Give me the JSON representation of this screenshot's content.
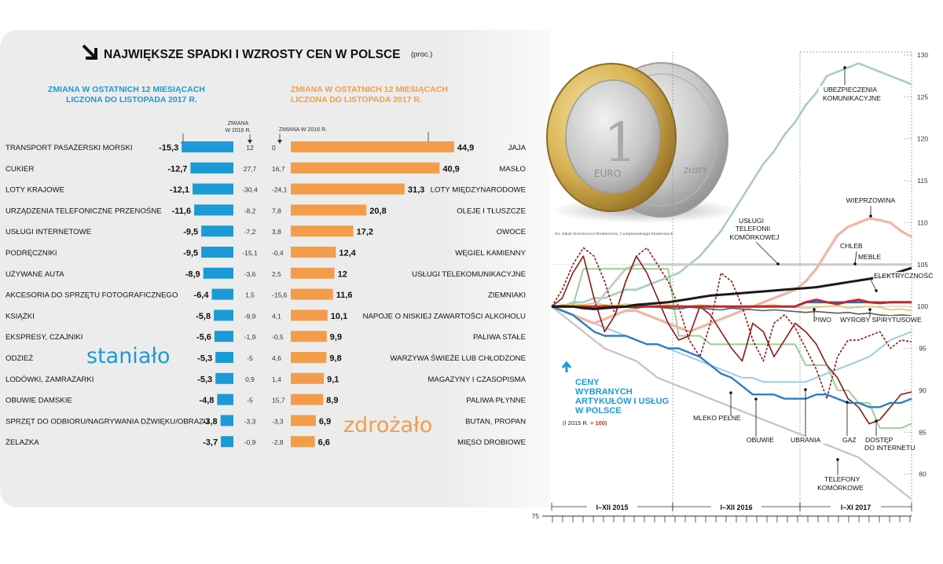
{
  "header": {
    "title": "NAJWIĘKSZE SPADKI I WZROSTY CEN W POLSCE",
    "unit": "(proc.)"
  },
  "decreases": {
    "subtitle_line1": "ZMIANA W OSTATNICH 12 MIESIĄCACH",
    "subtitle_line2": "LICZONA DO LISTOPADA 2017 R.",
    "col_header_line1": "ZMIANA",
    "col_header_line2": "W 2016 R.",
    "label_big": "staniało",
    "color": "#1c9ad6"
  },
  "increases": {
    "subtitle_line1": "ZMIANA W OSTATNICH 12 MIESIĄCACH",
    "subtitle_line2": "LICZONA DO LISTOPADA 2017 R.",
    "col_header": "ZMIANA W 2016 R.",
    "label_big": "zdrożało",
    "color": "#f39d4b"
  },
  "photo_credit": "fot. Jakub Krechowicz/Shutterstock, Coolphotodesign/Shutterstock",
  "coin": {
    "front_digit": "1",
    "front_text": "EURO",
    "back_text": "ZŁOTY"
  },
  "line_chart": {
    "title_line1": "CENY",
    "title_line2": "WYBRANYCH",
    "title_line3": "ARTYKUŁÓW I USŁUG",
    "title_line4": "W POLSCE",
    "note_prefix": "(I 2015 R. = ",
    "note_value": "100",
    "note_suffix": ")",
    "periods": [
      "I–XII 2015",
      "I–XII 2016",
      "I–XI 2017"
    ],
    "y_ticks": [
      "130",
      "125",
      "120",
      "115",
      "110",
      "105",
      "100",
      "95",
      "90",
      "85",
      "80",
      "75"
    ],
    "labels": {
      "ubezp1": "UBEZPIECZENIA",
      "ubezp2": "KOMUNIKACYJNE",
      "wieprz": "WIEPRZOWINA",
      "uslugi1": "USŁUGI",
      "uslugi2": "TELEFONII",
      "uslugi3": "KOMÓRKOWEJ",
      "chleb": "CHLEB",
      "meble": "MEBLE",
      "elektr": "ELEKTRYCZNOŚĆ",
      "piwo": "PIWO",
      "wyroby": "WYROBY SPIRYTUSOWE",
      "mleko": "MLEKO PEŁNE",
      "obuwie": "OBUWIE",
      "ubrania": "UBRANIA",
      "gaz": "GAZ",
      "dostep1": "DOSTĘP",
      "dostep2": "DO INTERNETU",
      "tel1": "TELEFONY",
      "tel2": "KOMÓRKOWE"
    }
  },
  "chart_data": [
    {
      "type": "bar",
      "title": "NAJWIĘKSZE SPADKI I WZROSTY CEN W POLSCE",
      "subtitle": "ZMIANA W OSTATNICH 12 MIESIĄCACH LICZONA DO LISTOPADA 2017 R.",
      "direction": "decrease",
      "categories": [
        "TRANSPORT PASAŻERSKI MORSKI",
        "CUKIER",
        "LOTY KRAJOWE",
        "URZĄDZENIA TELEFONICZNE PRZENOŚNE",
        "USŁUGI INTERNETOWE",
        "PODRĘCZNIKI",
        "UŻYWANE AUTA",
        "AKCESORIA DO SPRZĘTU FOTOGRAFICZNEGO",
        "KSIĄŻKI",
        "EKSPRESY, CZAJNIKI",
        "ODZIEŻ",
        "LODÓWKI, ZAMRAŻARKI",
        "OBUWIE DAMSKIE",
        "SPRZĘT DO ODBIORU/NAGRYWANIA DŹWIĘKU/OBRAZU",
        "ŻELAZKA"
      ],
      "values": [
        "-15,3",
        "-12,7",
        "-12,1",
        "-11,6",
        "-9,5",
        "-9,5",
        "-8,9",
        "-6,4",
        "-5,8",
        "-5,6",
        "-5,3",
        "-5,3",
        "-4,8",
        "-3,8",
        "-3,7"
      ],
      "values_num": [
        -15.3,
        -12.7,
        -12.1,
        -11.6,
        -9.5,
        -9.5,
        -8.9,
        -6.4,
        -5.8,
        -5.6,
        -5.3,
        -5.3,
        -4.8,
        -3.8,
        -3.7
      ],
      "change_2016": [
        "12",
        "27,7",
        "-30,4",
        "-8,2",
        "-7,2",
        "-15,1",
        "-3,6",
        "1,5",
        "-9,9",
        "-1,9",
        "-5",
        "0,9",
        "-5",
        "-3,3",
        "-0,9"
      ]
    },
    {
      "type": "bar",
      "direction": "increase",
      "subtitle": "ZMIANA W OSTATNICH 12 MIESIĄCACH LICZONA DO LISTOPADA 2017 R.",
      "categories": [
        "JAJA",
        "MASŁO",
        "LOTY MIĘDZYNARODOWE",
        "OLEJE I TŁUSZCZE",
        "OWOCE",
        "WĘGIEL KAMIENNY",
        "USŁUGI TELEKOMUNIKACYJNE",
        "ZIEMNIAKI",
        "NAPOJE O NISKIEJ ZAWARTOŚCI ALKOHOLU",
        "PALIWA STAŁE",
        "WARZYWA ŚWIEŻE LUB CHŁODZONE",
        "MAGAZYNY I CZASOPISMA",
        "PALIWA PŁYNNE",
        "BUTAN, PROPAN",
        "MIĘSO DROBIOWE"
      ],
      "values": [
        "44,9",
        "40,9",
        "31,3",
        "20,8",
        "17,2",
        "12,4",
        "12",
        "11,6",
        "10,1",
        "9,9",
        "9,8",
        "9,1",
        "8,9",
        "6,9",
        "6,6"
      ],
      "values_num": [
        44.9,
        40.9,
        31.3,
        20.8,
        17.2,
        12.4,
        12,
        11.6,
        10.1,
        9.9,
        9.8,
        9.1,
        8.9,
        6.9,
        6.6
      ],
      "change_2016": [
        "0",
        "16,7",
        "-24,1",
        "7,8",
        "3,8",
        "-0,4",
        "2,5",
        "-15,6",
        "4,1",
        "-0,5",
        "4,6",
        "1,4",
        "15,7",
        "-3,3",
        "-2,8"
      ]
    },
    {
      "type": "line",
      "title": "CENY WYBRANYCH ARTYKUŁÓW I USŁUG W POLSCE",
      "note": "(I 2015 R. = 100)",
      "ylim": [
        75,
        130
      ],
      "y_ticks": [
        75,
        80,
        85,
        90,
        95,
        100,
        105,
        110,
        115,
        120,
        125,
        130
      ],
      "periods": [
        "I–XII 2015",
        "I–XII 2016",
        "I–XI 2017"
      ],
      "months": 35,
      "series": [
        {
          "name": "UBEZPIECZENIA KOMUNIKACYJNE",
          "color": "#a9cbc9",
          "values": [
            100,
            100,
            100.5,
            100.5,
            101,
            101,
            101.5,
            102,
            102,
            102.5,
            103,
            103.5,
            104,
            105,
            106,
            107.5,
            109,
            111,
            113,
            115,
            117,
            118.5,
            120.5,
            122,
            124,
            125.5,
            127.5,
            128,
            128.5,
            129,
            128.5,
            128,
            127.5,
            127,
            126.5
          ]
        },
        {
          "name": "WIEPRZOWINA",
          "color": "#f0b5a3",
          "values": [
            100,
            99.5,
            99,
            98.5,
            98,
            98.5,
            99,
            99.5,
            99.5,
            99,
            98.5,
            98,
            97.5,
            97,
            97.5,
            98,
            98.5,
            99,
            99.5,
            100,
            100.5,
            101,
            101.5,
            102,
            103,
            104.5,
            106.5,
            108.5,
            109.5,
            110,
            110.5,
            110.3,
            110,
            109,
            108.3
          ]
        },
        {
          "name": "USŁUGI TELEFONII KOMÓRKOWEJ",
          "color": "#cccccc",
          "values": [
            100,
            100,
            100,
            100,
            100,
            101.5,
            103,
            104.5,
            105,
            105,
            105,
            105,
            105,
            105,
            105,
            105,
            105,
            105,
            105,
            105,
            105,
            105,
            105,
            105,
            105,
            105,
            105,
            105,
            105,
            105,
            105,
            105,
            105,
            105,
            105
          ]
        },
        {
          "name": "ELEKTRYCZNOŚĆ",
          "color": "#1a1a1a",
          "values": [
            100,
            100,
            100,
            99.8,
            99.7,
            99.8,
            99.9,
            100,
            100.2,
            100.3,
            100.4,
            100.5,
            100.7,
            100.9,
            101.1,
            101.3,
            101.4,
            101.5,
            101.6,
            101.7,
            101.8,
            101.9,
            102,
            102.1,
            102.2,
            102.3,
            102.5,
            102.7,
            102.9,
            103.1,
            103.3,
            103.5,
            103.8,
            104.2,
            104.6
          ]
        },
        {
          "name": "CHLEB",
          "color": "#c1272d",
          "values": [
            100,
            100,
            100,
            100,
            100,
            100,
            100,
            100,
            100,
            100,
            100,
            100,
            100,
            100,
            100,
            100,
            100,
            100,
            100,
            100,
            100,
            100,
            100,
            100,
            100.5,
            100.8,
            100.5,
            100.3,
            100.6,
            100.8,
            100.5,
            100.4,
            100.5,
            100.5,
            100.5
          ]
        },
        {
          "name": "MEBLE",
          "color": "#2a6fb5",
          "values": [
            100,
            100,
            100,
            100,
            100,
            100,
            100,
            100,
            100,
            100,
            100,
            100,
            100,
            100,
            100,
            100,
            100,
            100,
            100,
            100,
            100,
            100,
            100,
            100,
            100.5,
            100.5,
            100.5,
            100.5,
            100.5,
            100.5,
            100.5,
            100.5,
            100.5,
            100.5,
            100.5
          ]
        },
        {
          "name": "PIWO",
          "color": "#e8c35c",
          "values": [
            100,
            100.2,
            100.3,
            100.2,
            100.4,
            100.2,
            100.1,
            100.3,
            100.2,
            100,
            100.1,
            100.2,
            100.1,
            100,
            100.2,
            100.1,
            100,
            99.8,
            99.9,
            100,
            100.1,
            100.2,
            100,
            99.9,
            99.8,
            99.9,
            100,
            100.1,
            99.8,
            99.9,
            100,
            99.9,
            99.6,
            99.7,
            99.5
          ]
        },
        {
          "name": "WYROBY SPIRYTUSOWE",
          "color": "#5b5b5b",
          "values": [
            100,
            100.1,
            100,
            99.9,
            100,
            100.1,
            100,
            99.9,
            99.8,
            100,
            99.9,
            99.8,
            99.7,
            99.9,
            99.8,
            99.7,
            99.6,
            99.8,
            99.7,
            99.6,
            99.5,
            99.6,
            99.5,
            99.4,
            99.3,
            99.4,
            99.3,
            99.2,
            99.3,
            99.1,
            99.2,
            99.0,
            98.9,
            99.0,
            98.9
          ]
        },
        {
          "name": "MLEKO PEŁNE",
          "color": "#2f7fc2",
          "values": [
            100,
            99.5,
            99,
            98,
            97,
            96.5,
            96.5,
            96.5,
            96,
            95.5,
            95.5,
            95,
            95,
            94.5,
            94,
            93,
            92,
            91.5,
            90.5,
            89.5,
            89.5,
            89.5,
            89,
            89,
            89,
            89.5,
            89.5,
            89,
            88.5,
            88.5,
            88,
            88,
            88.5,
            88.5,
            89
          ]
        },
        {
          "name": "OBUWIE",
          "color": "#8c1a14",
          "values": [
            100,
            101,
            104,
            106,
            101,
            97,
            99,
            103,
            106,
            104,
            101,
            98,
            96,
            96.5,
            100,
            99,
            97,
            95,
            93.5,
            98,
            97,
            94,
            96,
            98,
            97,
            95.5,
            93,
            91.5,
            89,
            88,
            86,
            86.5,
            88,
            89.5,
            89.8
          ]
        },
        {
          "name": "UBRANIA",
          "color": "#8c1a14",
          "values": [
            100,
            102,
            105,
            107,
            106,
            103,
            99,
            103,
            106,
            107,
            105,
            103,
            100,
            96,
            94,
            98,
            104,
            103,
            100,
            96,
            93.5,
            98,
            99,
            97.5,
            95,
            92.5,
            89,
            94,
            96,
            96,
            96.5,
            97,
            95,
            96,
            95.8
          ]
        },
        {
          "name": "GAZ",
          "color": "#9ccf9a",
          "values": [
            100,
            100,
            100,
            104.5,
            104.5,
            104.5,
            104.5,
            104.5,
            104.5,
            104.5,
            104.5,
            104.5,
            96.5,
            96.5,
            96.5,
            95.5,
            95.5,
            95.5,
            95.5,
            95.5,
            95.5,
            95.5,
            95.5,
            95.5,
            93,
            93,
            93,
            90,
            90,
            88.5,
            88.5,
            85.5,
            85.5,
            85.5,
            86
          ]
        },
        {
          "name": "DOSTĘP DO INTERNETU",
          "color": "#9ecbe6",
          "values": [
            100,
            99.5,
            99,
            98.5,
            98,
            97.5,
            97,
            96.5,
            96,
            95.5,
            95.5,
            95,
            94.5,
            94,
            93.5,
            93,
            92.5,
            92,
            91.5,
            91.5,
            91,
            91,
            91,
            91,
            91,
            91.5,
            92,
            92.5,
            93,
            93.5,
            94,
            95,
            96,
            96.5,
            97
          ]
        },
        {
          "name": "TELEFONY KOMÓRKOWE",
          "color": "#c8c8c8",
          "values": [
            100,
            99,
            98,
            97,
            96,
            95,
            94.5,
            94,
            93.5,
            92.5,
            91.5,
            91,
            90.5,
            90,
            89.5,
            89,
            88.5,
            88,
            87.5,
            87,
            86.5,
            86,
            85.5,
            85,
            84.5,
            84,
            83.5,
            83,
            82.5,
            82,
            81,
            80,
            79,
            78,
            77
          ]
        },
        {
          "name": "ELEKTRYCZNOŚĆ (2)",
          "color": "#1a1a1a",
          "values": [
            100,
            100,
            100,
            100,
            100,
            100,
            100,
            100,
            100,
            100,
            100,
            100,
            100,
            100,
            100,
            100,
            100,
            100,
            100,
            100,
            100,
            100,
            100,
            100,
            100,
            100,
            100,
            100,
            100,
            100,
            100,
            100,
            100,
            100,
            100
          ]
        }
      ]
    }
  ]
}
